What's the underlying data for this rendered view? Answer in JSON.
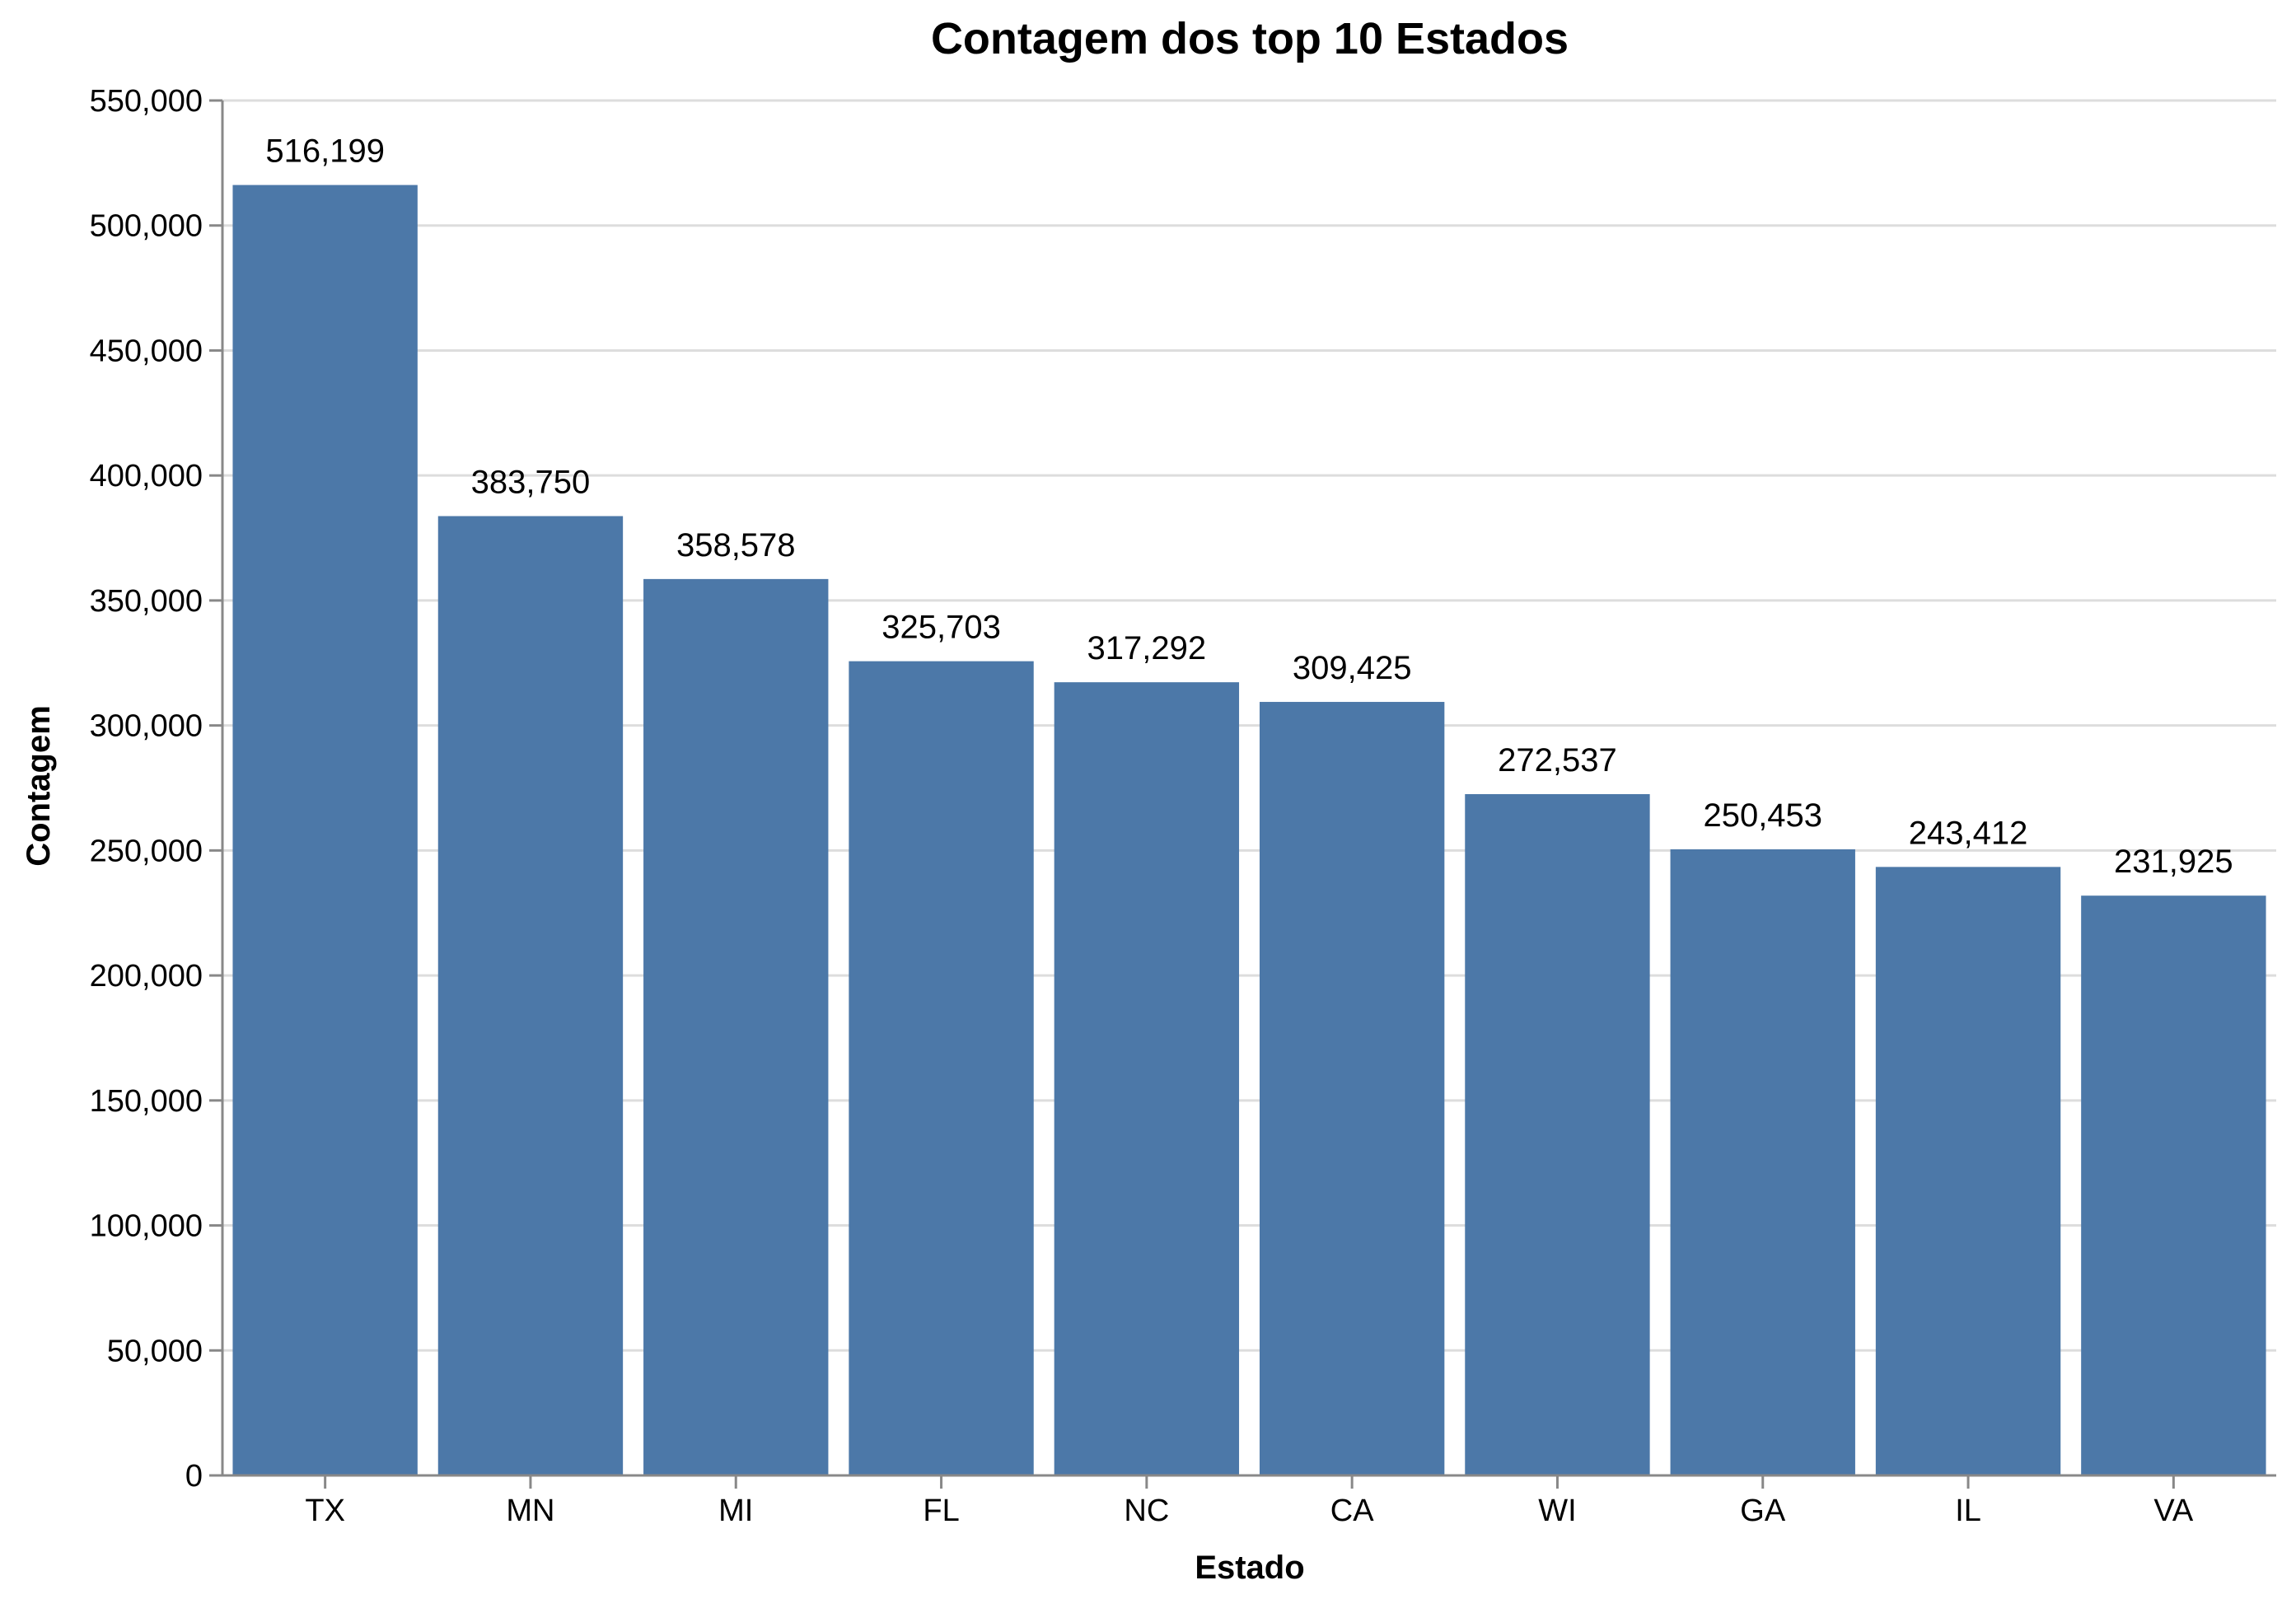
{
  "chart_data": {
    "type": "bar",
    "title": "Contagem dos top 10 Estados",
    "xlabel": "Estado",
    "ylabel": "Contagem",
    "categories": [
      "TX",
      "MN",
      "MI",
      "FL",
      "NC",
      "CA",
      "WI",
      "GA",
      "IL",
      "VA"
    ],
    "values": [
      516199,
      383750,
      358578,
      325703,
      317292,
      309425,
      272537,
      250453,
      243412,
      231925
    ],
    "data_labels": [
      "516,199",
      "383,750",
      "358,578",
      "325,703",
      "317,292",
      "309,425",
      "272,537",
      "250,453",
      "243,412",
      "231,925"
    ],
    "ylim": [
      0,
      550000
    ],
    "yticks": [
      0,
      50000,
      100000,
      150000,
      200000,
      250000,
      300000,
      350000,
      400000,
      450000,
      500000,
      550000
    ],
    "ytick_labels": [
      "0",
      "50,000",
      "100,000",
      "150,000",
      "200,000",
      "250,000",
      "300,000",
      "350,000",
      "400,000",
      "450,000",
      "500,000",
      "550,000"
    ],
    "grid": true,
    "bar_color": "#4c78a8"
  }
}
